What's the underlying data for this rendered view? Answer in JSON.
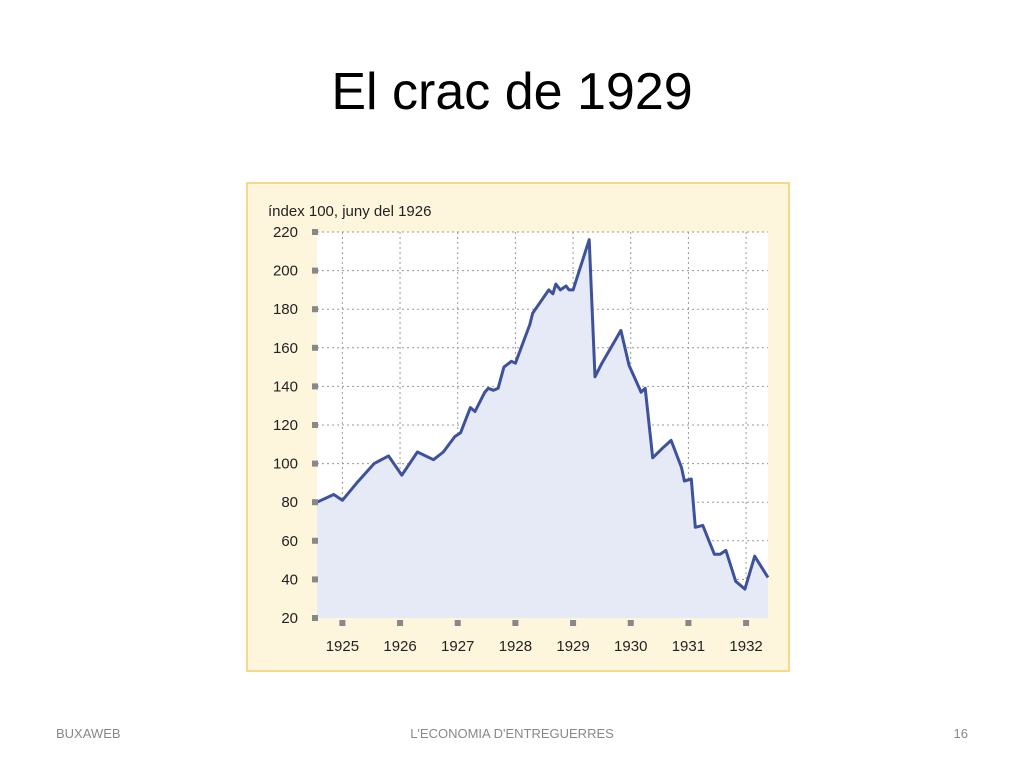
{
  "slide": {
    "title": "El crac de 1929",
    "footer_left": "BUXAWEB",
    "footer_center": "L'ECONOMIA D'ENTREGUERRES",
    "footer_right": "16"
  },
  "chart_data": {
    "type": "area",
    "title": "",
    "ylabel": "índex 100, juny del 1926",
    "xlabel": "",
    "ylim": [
      20,
      220
    ],
    "yticks": [
      20,
      40,
      60,
      80,
      100,
      120,
      140,
      160,
      180,
      200,
      220
    ],
    "xlim": [
      1924.56,
      1932.38
    ],
    "xticks": [
      1925,
      1926,
      1927,
      1928,
      1929,
      1930,
      1931,
      1932
    ],
    "grid": true,
    "colors": {
      "background": "#fdf6dc",
      "border": "#f5d88a",
      "plot_bg": "#ffffff",
      "area_fill": "#e6e9f6",
      "line": "#3e529c",
      "grid": "#999999",
      "tick_marker": "#888888"
    },
    "series": [
      {
        "x": [
          1924.56,
          1924.85,
          1925.0,
          1925.25,
          1925.55,
          1925.8,
          1926.03,
          1926.3,
          1926.58,
          1926.75,
          1926.95,
          1927.05,
          1927.22,
          1927.3,
          1927.47,
          1927.53,
          1927.62,
          1927.7,
          1927.8,
          1927.93,
          1928.0,
          1928.25,
          1928.3,
          1928.58,
          1928.65,
          1928.7,
          1928.78,
          1928.88,
          1928.93,
          1929.0,
          1929.28,
          1929.38,
          1929.5,
          1929.83,
          1929.97,
          1930.18,
          1930.25,
          1930.38,
          1930.55,
          1930.7,
          1930.88,
          1930.93,
          1931.05,
          1931.12,
          1931.25,
          1931.45,
          1931.55,
          1931.65,
          1931.82,
          1931.98,
          1932.15,
          1932.38
        ],
        "y": [
          80,
          84,
          81,
          90,
          100,
          104,
          94,
          106,
          102,
          106,
          114,
          116,
          129,
          127,
          137,
          139,
          138,
          139,
          150,
          153,
          152,
          172,
          178,
          190,
          188,
          193,
          190,
          192,
          190,
          190,
          216,
          145,
          152,
          169,
          151,
          137,
          139,
          103,
          108,
          112,
          98,
          91,
          92,
          67,
          68,
          53,
          53,
          55,
          39,
          35,
          52,
          41
        ]
      }
    ]
  }
}
